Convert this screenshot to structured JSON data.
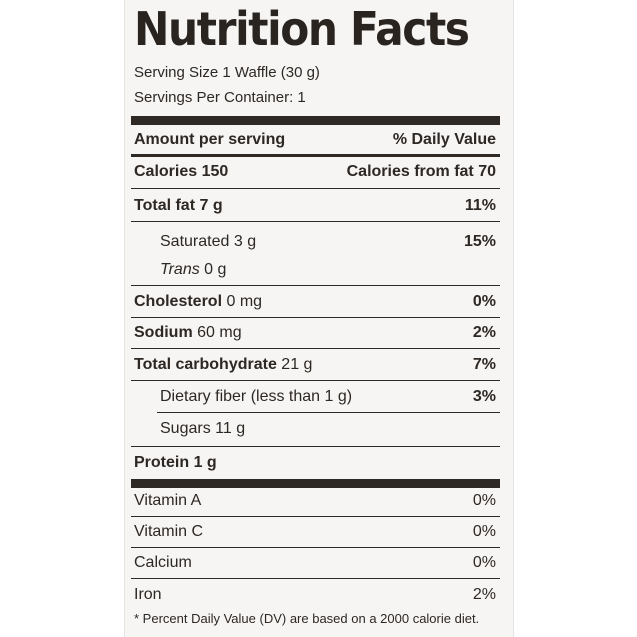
{
  "title": "Nutrition Facts",
  "serving_size": "Serving Size 1 Waffle (30 g)",
  "servings_per_container": "Servings Per Container: 1",
  "header": {
    "amount": "Amount per serving",
    "daily_value": "% Daily Value"
  },
  "calories": {
    "label": "Calories 150",
    "from_fat": "Calories from fat 70"
  },
  "total_fat": {
    "label": "Total fat",
    "amount": "7 g",
    "dv": "11%"
  },
  "saturated": {
    "label": "Saturated",
    "amount": "3 g",
    "dv": "15%"
  },
  "trans": {
    "label": "Trans",
    "amount": "0 g"
  },
  "cholesterol": {
    "label": "Cholesterol",
    "amount": "0 mg",
    "dv": "0%"
  },
  "sodium": {
    "label": "Sodium",
    "amount": "60 mg",
    "dv": "2%"
  },
  "carbohydrate": {
    "label": "Total carbohydrate",
    "amount": "21 g",
    "dv": "7%"
  },
  "fiber": {
    "label": "Dietary fiber (less than 1 g)",
    "dv": "3%"
  },
  "sugars": {
    "label": "Sugars",
    "amount": "11 g"
  },
  "protein": {
    "label": "Protein",
    "amount": "1 g"
  },
  "vitamin_a": {
    "label": "Vitamin A",
    "dv": "0%"
  },
  "vitamin_c": {
    "label": "Vitamin C",
    "dv": "0%"
  },
  "calcium": {
    "label": "Calcium",
    "dv": "0%"
  },
  "iron": {
    "label": "Iron",
    "dv": "2%"
  },
  "footnote": "* Percent Daily Value (DV) are based on a 2000 calorie diet."
}
